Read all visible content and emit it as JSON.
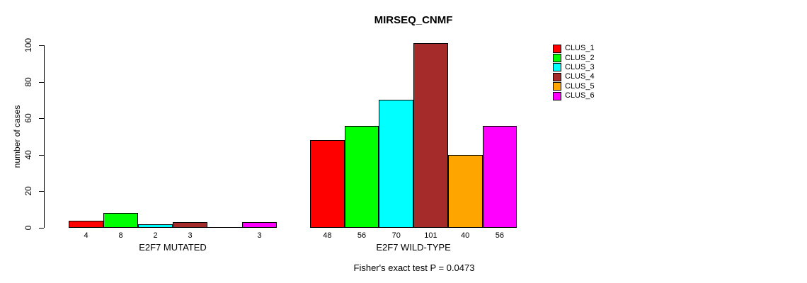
{
  "chart_data": {
    "type": "bar",
    "title": "MIRSEQ_CNMF",
    "ylabel": "number of cases",
    "subtitle": "Fisher's exact test P = 0.0473",
    "ylim": [
      0,
      100
    ],
    "yticks": [
      0,
      20,
      40,
      60,
      80,
      100
    ],
    "grid": false,
    "legend_position": "right",
    "series_colors": [
      "#FF0000",
      "#00FF00",
      "#00FFFF",
      "#A52A2A",
      "#FFA500",
      "#FF00FF"
    ],
    "legend": [
      {
        "label": "CLUS_1",
        "color": "#FF0000"
      },
      {
        "label": "CLUS_2",
        "color": "#00FF00"
      },
      {
        "label": "CLUS_3",
        "color": "#00FFFF"
      },
      {
        "label": "CLUS_4",
        "color": "#A52A2A"
      },
      {
        "label": "CLUS_5",
        "color": "#FFA500"
      },
      {
        "label": "CLUS_6",
        "color": "#FF00FF"
      }
    ],
    "groups": [
      {
        "label": "E2F7 MUTATED",
        "values": [
          4,
          8,
          2,
          3,
          0,
          3
        ]
      },
      {
        "label": "E2F7 WILD-TYPE",
        "values": [
          48,
          56,
          70,
          101,
          40,
          56
        ]
      }
    ]
  }
}
